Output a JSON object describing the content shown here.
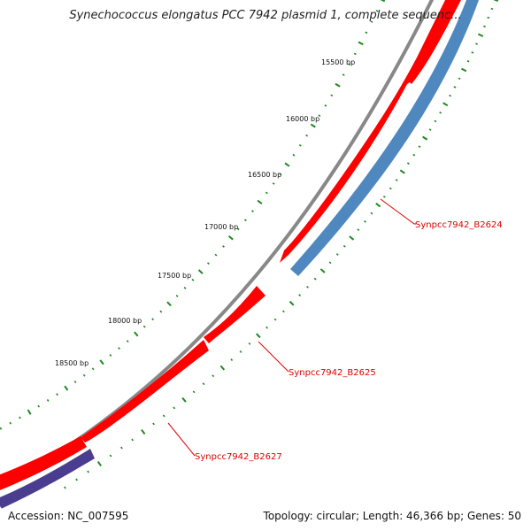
{
  "title": "Synechococcus elongatus PCC 7942 plasmid 1, complete sequenc...",
  "accession": "Accession: NC_007595",
  "summary": "Topology: circular; Length: 46,366 bp; Genes: 50",
  "colors": {
    "backbone": "#888888",
    "gene_forward": "#ff0000",
    "gene_reverse_blue": "#4f88bf",
    "gene_reverse_purple": "#4a3d8f",
    "ticks": "#1a8a1a",
    "label_text": "#dd0000",
    "leader_line": "#dd0000"
  },
  "ticks": [
    {
      "label": "15500 bp"
    },
    {
      "label": "16000 bp"
    },
    {
      "label": "16500 bp"
    },
    {
      "label": "17000 bp"
    },
    {
      "label": "17500 bp"
    },
    {
      "label": "18000 bp"
    },
    {
      "label": "18500 bp"
    }
  ],
  "genes": [
    {
      "label": "Synpcc7942_B2624"
    },
    {
      "label": "Synpcc7942_B2625"
    },
    {
      "label": "Synpcc7942_B2627"
    }
  ]
}
